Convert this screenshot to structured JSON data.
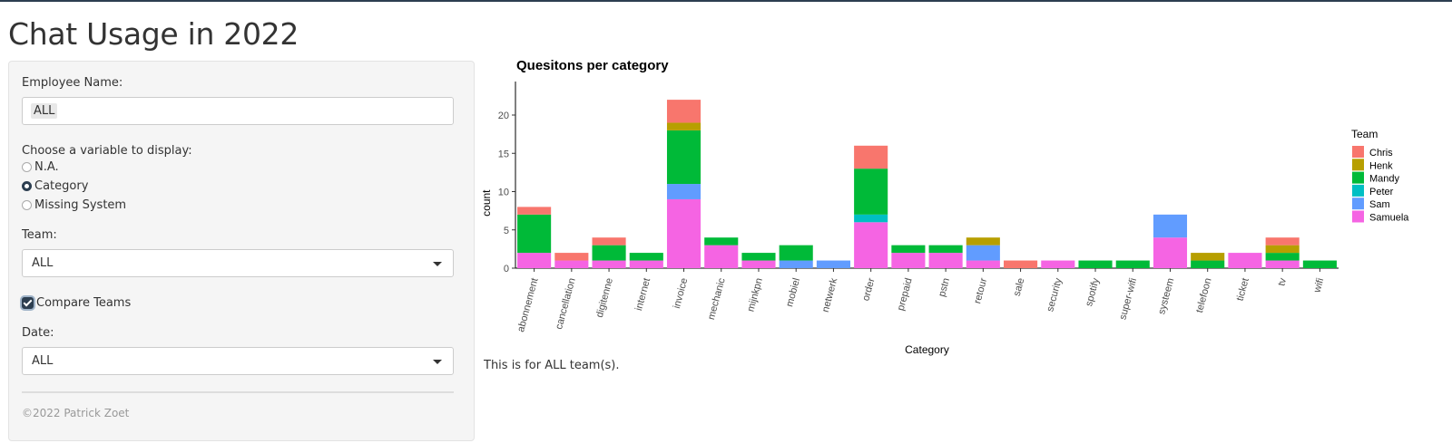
{
  "page": {
    "title": "Chat Usage in 2022"
  },
  "sidebar": {
    "employee_label": "Employee Name:",
    "employee_value": "ALL",
    "variable_label": "Choose a variable to display:",
    "variable_options": [
      "N.A.",
      "Category",
      "Missing System"
    ],
    "variable_selected": "Category",
    "team_label": "Team:",
    "team_value": "ALL",
    "compare_label": "Compare Teams",
    "compare_checked": true,
    "date_label": "Date:",
    "date_value": "ALL",
    "footer": "©2022 Patrick Zoet"
  },
  "caption": "This is for ALL team(s).",
  "chart_data": {
    "type": "bar",
    "stacked": true,
    "title": "Quesitons per category",
    "xlabel": "Category",
    "ylabel": "count",
    "ylim": [
      0,
      22
    ],
    "yticks": [
      0,
      5,
      10,
      15,
      20
    ],
    "legend_title": "Team",
    "legend_position": "right",
    "categories": [
      "abonnement",
      "cancellation",
      "digitenne",
      "internet",
      "invoice",
      "mechanic",
      "mijnkpn",
      "mobiel",
      "netwerk",
      "order",
      "prepaid",
      "pstn",
      "retour",
      "sale",
      "security",
      "spotify",
      "super-wifi",
      "systeem",
      "telefoon",
      "ticket",
      "tv",
      "wifi"
    ],
    "series": [
      {
        "name": "Samuela",
        "color": "#F564E3",
        "values": [
          2,
          1,
          1,
          1,
          9,
          3,
          1,
          0,
          0,
          6,
          2,
          2,
          1,
          0,
          1,
          0,
          0,
          4,
          0,
          2,
          1,
          0
        ]
      },
      {
        "name": "Sam",
        "color": "#619CFF",
        "values": [
          0,
          0,
          0,
          0,
          2,
          0,
          0,
          1,
          1,
          0,
          0,
          0,
          2,
          0,
          0,
          0,
          0,
          3,
          0,
          0,
          0,
          0
        ]
      },
      {
        "name": "Peter",
        "color": "#00BFC4",
        "values": [
          0,
          0,
          0,
          0,
          0,
          0,
          0,
          0,
          0,
          1,
          0,
          0,
          0,
          0,
          0,
          0,
          0,
          0,
          0,
          0,
          0,
          0
        ]
      },
      {
        "name": "Mandy",
        "color": "#00BA38",
        "values": [
          5,
          0,
          2,
          1,
          7,
          1,
          1,
          2,
          0,
          6,
          1,
          1,
          0,
          0,
          0,
          1,
          1,
          0,
          1,
          0,
          1,
          1
        ]
      },
      {
        "name": "Henk",
        "color": "#B79F00",
        "values": [
          0,
          0,
          0,
          0,
          1,
          0,
          0,
          0,
          0,
          0,
          0,
          0,
          1,
          0,
          0,
          0,
          0,
          0,
          1,
          0,
          1,
          0
        ]
      },
      {
        "name": "Chris",
        "color": "#F8766D",
        "values": [
          1,
          1,
          1,
          0,
          3,
          0,
          0,
          0,
          0,
          3,
          0,
          0,
          0,
          1,
          0,
          0,
          0,
          0,
          0,
          0,
          1,
          0
        ]
      }
    ]
  }
}
